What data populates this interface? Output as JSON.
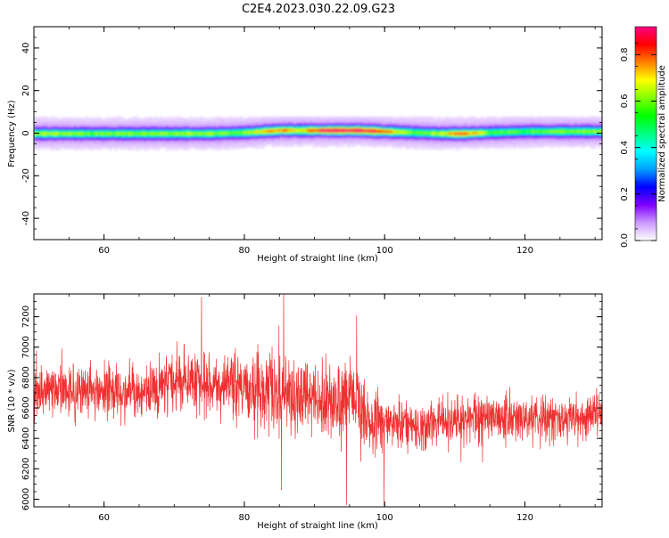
{
  "figure_title": "C2E4.2023.030.22.09.G23",
  "chart_data": [
    {
      "type": "heatmap",
      "xlabel": "Height of straight line (km)",
      "ylabel": "Frequency (Hz)",
      "xlim": [
        50,
        131
      ],
      "ylim": [
        -50,
        50
      ],
      "x_ticks": [
        60,
        80,
        100,
        120
      ],
      "y_ticks": [
        -40,
        -20,
        0,
        20,
        40
      ],
      "colorbar": {
        "label": "Normalized spectral amplitude",
        "range": [
          0,
          0.92
        ],
        "ticks": [
          0.0,
          0.2,
          0.4,
          0.6,
          0.8
        ],
        "tick_labels": [
          "0.0",
          "0.2",
          "0.4",
          "0.6",
          "0.8"
        ],
        "colormap": [
          "#ffffff",
          "#cc99ff",
          "#8000ff",
          "#0000ff",
          "#00a0ff",
          "#00ffff",
          "#00ff80",
          "#00ff00",
          "#80ff00",
          "#ffff00",
          "#ff8000",
          "#ff0000",
          "#ff0080"
        ]
      },
      "peak_frequency_track": [
        {
          "x": 50,
          "f": 0.0,
          "amp": 0.55
        },
        {
          "x": 55,
          "f": 0.0,
          "amp": 0.5
        },
        {
          "x": 60,
          "f": 0.0,
          "amp": 0.48
        },
        {
          "x": 65,
          "f": 0.0,
          "amp": 0.5
        },
        {
          "x": 70,
          "f": 0.0,
          "amp": 0.52
        },
        {
          "x": 75,
          "f": 0.0,
          "amp": 0.5
        },
        {
          "x": 80,
          "f": 0.5,
          "amp": 0.5
        },
        {
          "x": 85,
          "f": 1.5,
          "amp": 0.7
        },
        {
          "x": 88,
          "f": 1.5,
          "amp": 0.6
        },
        {
          "x": 92,
          "f": 1.5,
          "amp": 0.85
        },
        {
          "x": 96,
          "f": 1.5,
          "amp": 0.85
        },
        {
          "x": 100,
          "f": 1.0,
          "amp": 0.7
        },
        {
          "x": 104,
          "f": 0.5,
          "amp": 0.45
        },
        {
          "x": 108,
          "f": 0.0,
          "amp": 0.55
        },
        {
          "x": 111,
          "f": 0.0,
          "amp": 0.75
        },
        {
          "x": 115,
          "f": 0.5,
          "amp": 0.45
        },
        {
          "x": 120,
          "f": 1.0,
          "amp": 0.45
        },
        {
          "x": 125,
          "f": 1.0,
          "amp": 0.5
        },
        {
          "x": 131,
          "f": 1.0,
          "amp": 0.5
        }
      ]
    },
    {
      "type": "line",
      "xlabel": "Height of straight line (km)",
      "ylabel": "SNR (10 * v/v)",
      "xlim": [
        50,
        131
      ],
      "ylim": [
        5950,
        7350
      ],
      "x_ticks": [
        60,
        80,
        100,
        120
      ],
      "y_ticks": [
        6000,
        6200,
        6400,
        6600,
        6800,
        7000,
        7200
      ],
      "series": [
        {
          "color": "#f03030",
          "trend": [
            {
              "x": 50,
              "mean": 6700,
              "spread": 110
            },
            {
              "x": 55,
              "mean": 6720,
              "spread": 130
            },
            {
              "x": 60,
              "mean": 6700,
              "spread": 120
            },
            {
              "x": 65,
              "mean": 6690,
              "spread": 120
            },
            {
              "x": 70,
              "mean": 6770,
              "spread": 130
            },
            {
              "x": 75,
              "mean": 6760,
              "spread": 150
            },
            {
              "x": 80,
              "mean": 6730,
              "spread": 150
            },
            {
              "x": 85,
              "mean": 6680,
              "spread": 220
            },
            {
              "x": 90,
              "mean": 6660,
              "spread": 150
            },
            {
              "x": 95,
              "mean": 6650,
              "spread": 180
            },
            {
              "x": 97,
              "mean": 6560,
              "spread": 150
            },
            {
              "x": 100,
              "mean": 6500,
              "spread": 120
            },
            {
              "x": 105,
              "mean": 6480,
              "spread": 110
            },
            {
              "x": 110,
              "mean": 6520,
              "spread": 110
            },
            {
              "x": 115,
              "mean": 6540,
              "spread": 110
            },
            {
              "x": 120,
              "mean": 6540,
              "spread": 100
            },
            {
              "x": 125,
              "mean": 6530,
              "spread": 100
            },
            {
              "x": 131,
              "mean": 6540,
              "spread": 100
            }
          ],
          "extremes": [
            {
              "x": 73.9,
              "y": 7330
            },
            {
              "x": 85.6,
              "y": 7350
            },
            {
              "x": 85.3,
              "y": 6060
            },
            {
              "x": 94.6,
              "y": 5960
            },
            {
              "x": 99.9,
              "y": 5960
            },
            {
              "x": 96.0,
              "y": 7210
            }
          ]
        }
      ]
    }
  ]
}
